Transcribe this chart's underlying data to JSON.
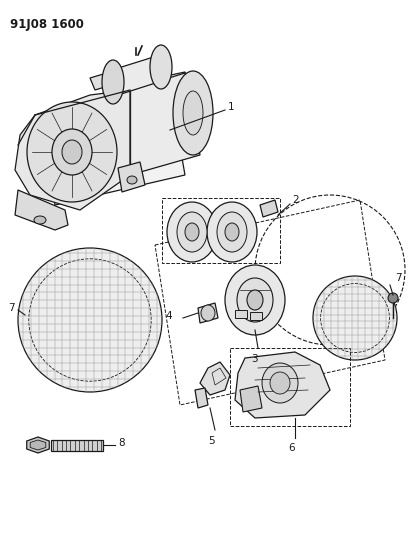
{
  "title": "91J08 1600",
  "background_color": "#ffffff",
  "line_color": "#1a1a1a",
  "fig_width": 4.12,
  "fig_height": 5.33,
  "dpi": 100
}
